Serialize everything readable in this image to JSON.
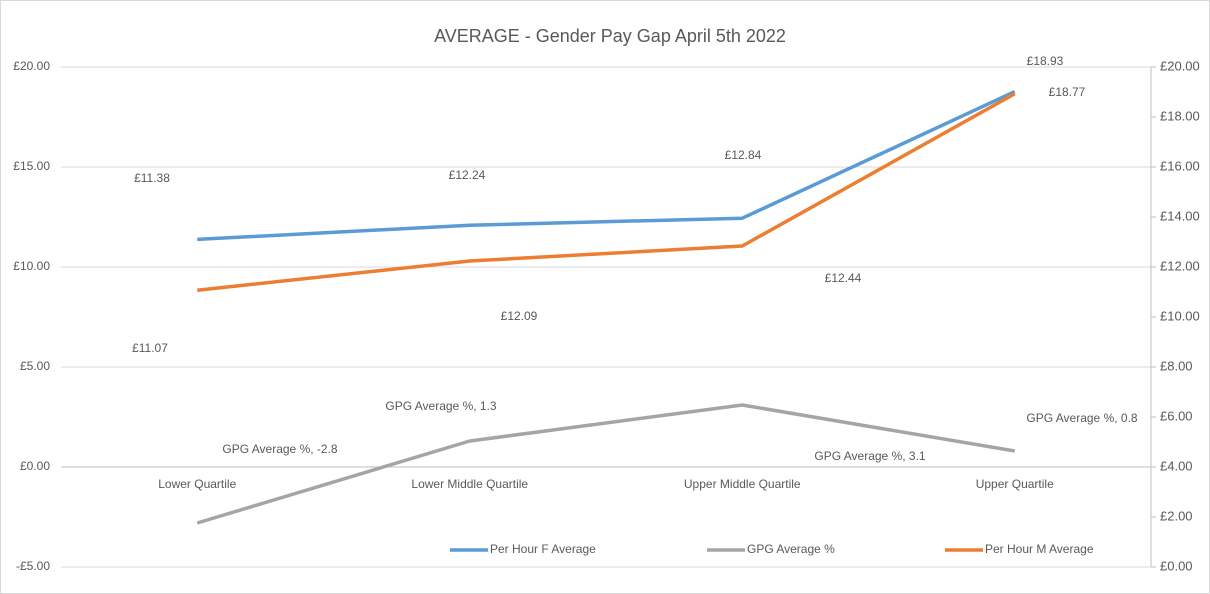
{
  "chart_data": {
    "type": "line",
    "title": "AVERAGE - Gender Pay Gap April 5th 2022",
    "categories": [
      "Lower Quartile",
      "Lower Middle Quartile",
      "Upper Middle Quartile",
      "Upper Quartile"
    ],
    "series": [
      {
        "name": "Per Hour F Average",
        "color": "#5b9bd5",
        "values": [
          11.38,
          12.09,
          12.44,
          18.77
        ],
        "value_labels": [
          "£11.38",
          "£12.09",
          "£12.44",
          "£18.77"
        ]
      },
      {
        "name": "GPG Average %",
        "color": "#a5a5a5",
        "values": [
          -2.8,
          1.3,
          3.1,
          0.8
        ],
        "value_labels": [
          "GPG Average %, -2.8",
          "GPG Average %, 1.3",
          "GPG Average %, 3.1",
          "GPG Average %, 0.8"
        ]
      },
      {
        "name": "Per Hour M Average",
        "color": "#ed7d31",
        "axis": "y2",
        "values": [
          11.07,
          12.24,
          12.84,
          18.93
        ],
        "value_labels": [
          "£11.07",
          "£12.24",
          "£12.84",
          "£18.93"
        ]
      }
    ],
    "ylim": [
      -5,
      20
    ],
    "yticks": [
      {
        "value": -5,
        "label": "-£5.00"
      },
      {
        "value": 0,
        "label": "£0.00"
      },
      {
        "value": 5,
        "label": "£5.00"
      },
      {
        "value": 10,
        "label": "£10.00"
      },
      {
        "value": 15,
        "label": "£15.00"
      },
      {
        "value": 20,
        "label": "£20.00"
      }
    ],
    "y2lim": [
      0,
      20
    ],
    "y2ticks": [
      {
        "value": 0,
        "label": "£0.00"
      },
      {
        "value": 2,
        "label": "£2.00"
      },
      {
        "value": 4,
        "label": "£4.00"
      },
      {
        "value": 6,
        "label": "£6.00"
      },
      {
        "value": 8,
        "label": "£8.00"
      },
      {
        "value": 10,
        "label": "£10.00"
      },
      {
        "value": 12,
        "label": "£12.00"
      },
      {
        "value": 14,
        "label": "£14.00"
      },
      {
        "value": 16,
        "label": "£16.00"
      },
      {
        "value": 18,
        "label": "£18.00"
      },
      {
        "value": 20,
        "label": "£20.00"
      }
    ],
    "grid": true,
    "legend": "bottom"
  }
}
